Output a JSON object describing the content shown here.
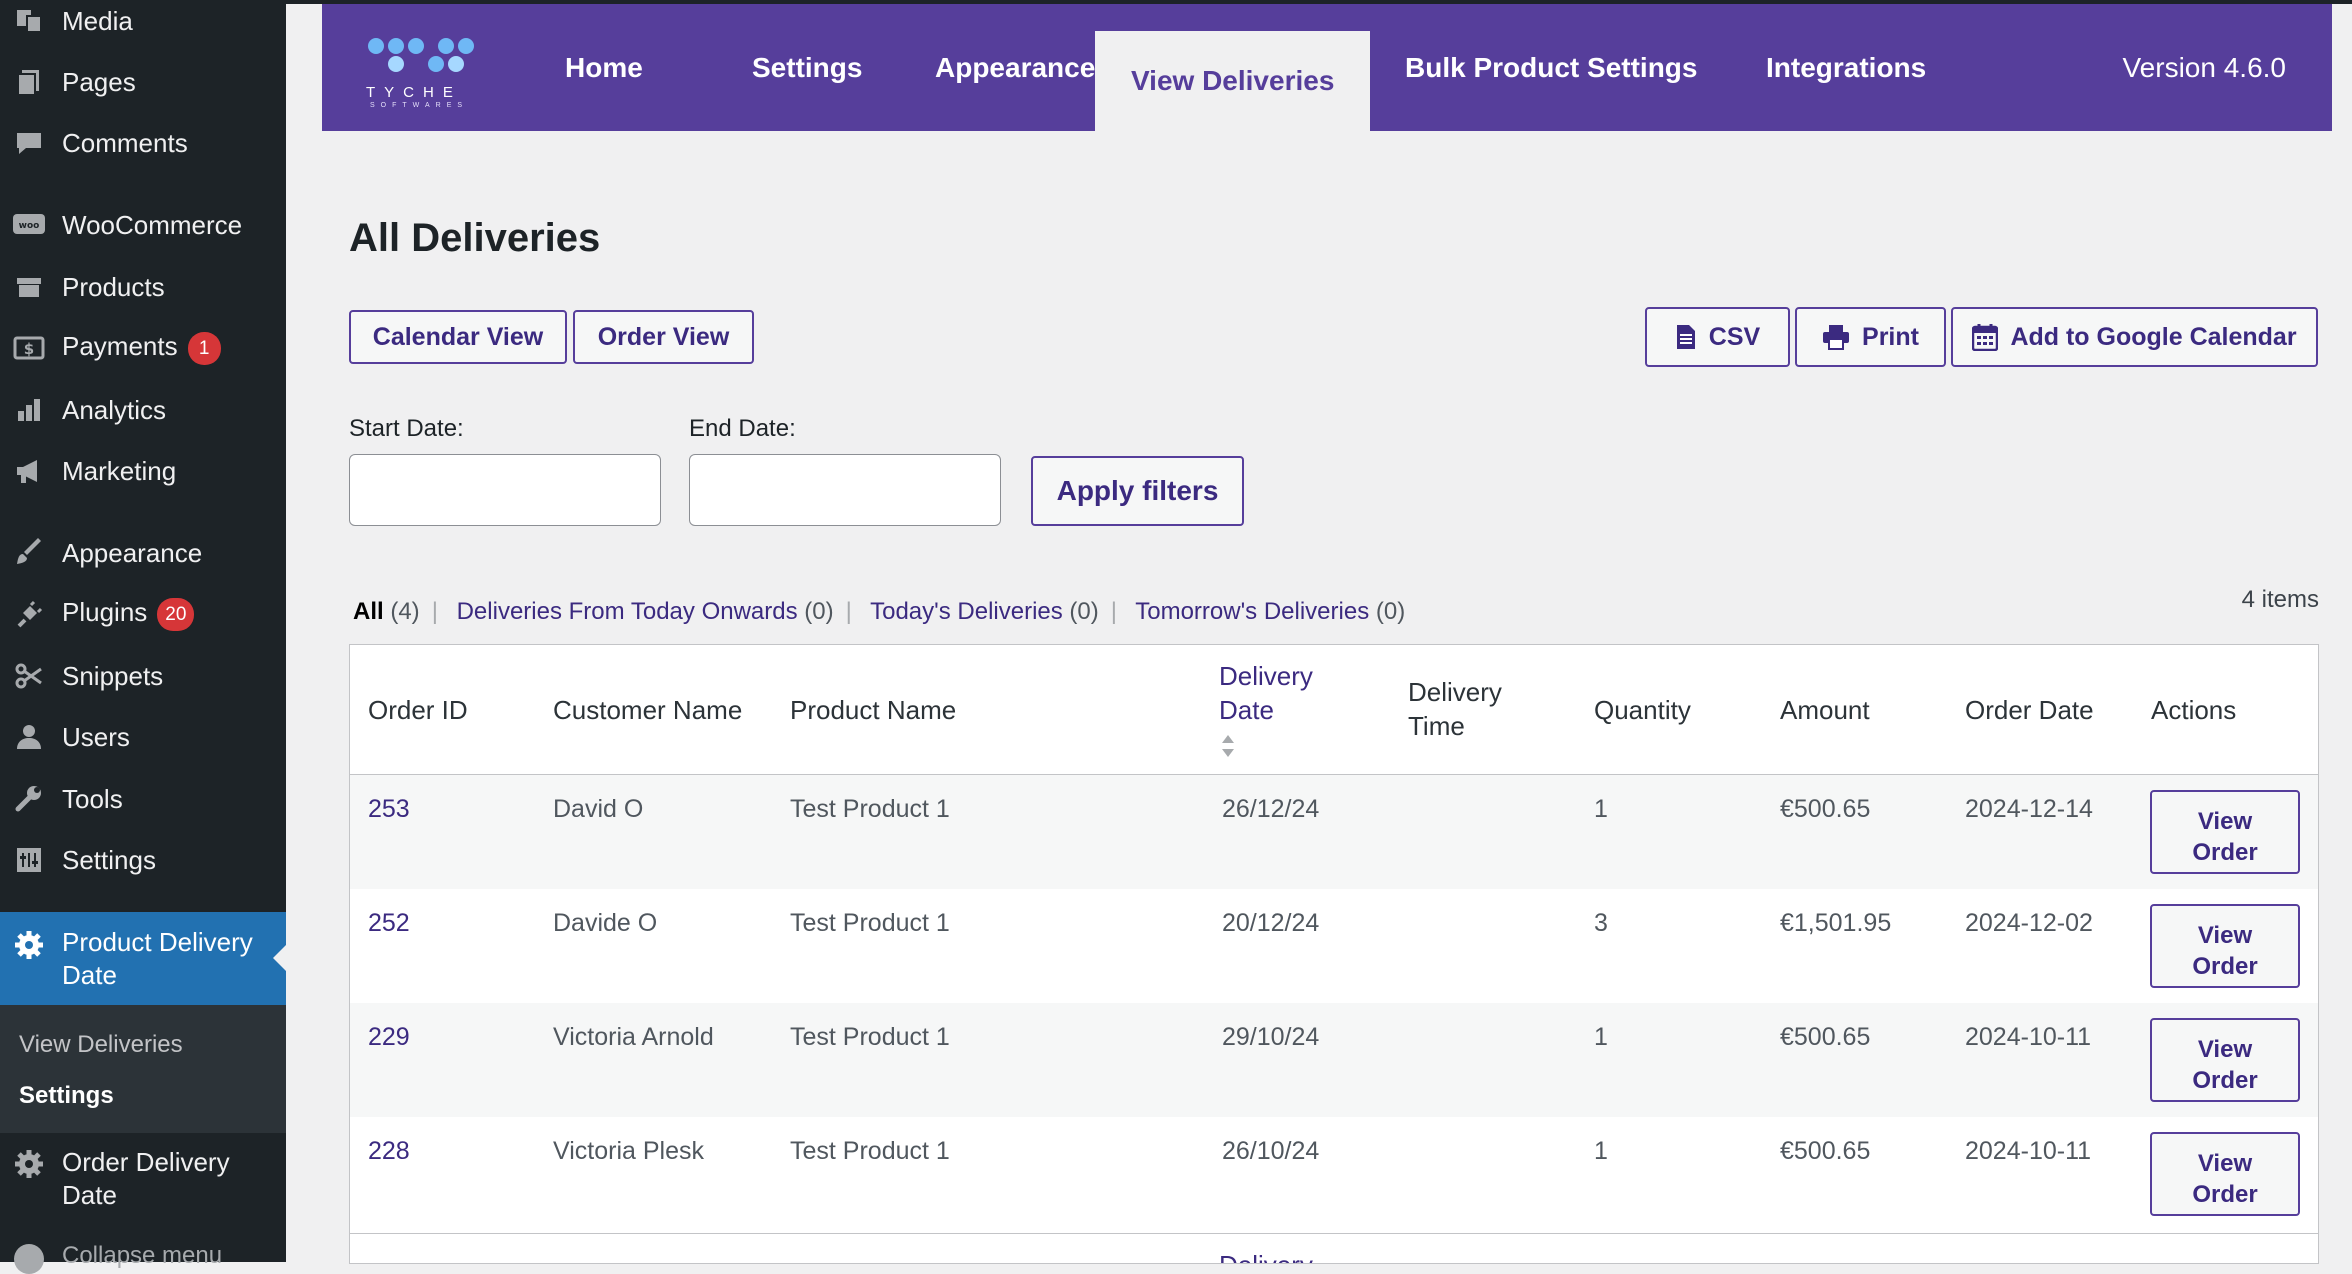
{
  "sidebar": {
    "items": [
      {
        "label": "Media",
        "icon": "media-icon"
      },
      {
        "label": "Pages",
        "icon": "pages-icon"
      },
      {
        "label": "Comments",
        "icon": "comments-icon"
      },
      {
        "label": "WooCommerce",
        "icon": "woocommerce-icon"
      },
      {
        "label": "Products",
        "icon": "products-icon"
      },
      {
        "label": "Payments",
        "icon": "payments-icon",
        "badge": "1"
      },
      {
        "label": "Analytics",
        "icon": "analytics-icon"
      },
      {
        "label": "Marketing",
        "icon": "megaphone-icon"
      },
      {
        "label": "Appearance",
        "icon": "paintbrush-icon"
      },
      {
        "label": "Plugins",
        "icon": "plugins-icon",
        "badge": "20"
      },
      {
        "label": "Snippets",
        "icon": "scissors-icon"
      },
      {
        "label": "Users",
        "icon": "users-icon"
      },
      {
        "label": "Tools",
        "icon": "wrench-icon"
      },
      {
        "label": "Settings",
        "icon": "settings-icon"
      }
    ],
    "active_item": {
      "line1": "Product Delivery",
      "line2": "Date",
      "icon": "gear-icon"
    },
    "submenu": [
      {
        "label": "View Deliveries"
      },
      {
        "label": "Settings"
      }
    ],
    "order_delivery": {
      "line1": "Order Delivery",
      "line2": "Date",
      "icon": "gear-icon"
    },
    "collapse_label": "Collapse menu"
  },
  "header": {
    "logo_text": "TYCHE",
    "logo_sub": "SOFTWARES",
    "tabs": [
      {
        "label": "Home"
      },
      {
        "label": "Settings"
      },
      {
        "label": "Appearance"
      },
      {
        "label": "View Deliveries"
      },
      {
        "label": "Bulk Product Settings"
      },
      {
        "label": "Integrations"
      }
    ],
    "version": "Version 4.6.0"
  },
  "page": {
    "title": "All Deliveries",
    "calendar_view": "Calendar View",
    "order_view": "Order View",
    "csv": "CSV",
    "print": "Print",
    "google_calendar": "Add to Google Calendar",
    "start_date_label": "Start Date:",
    "end_date_label": "End Date:",
    "start_date_value": "",
    "end_date_value": "",
    "apply_filters": "Apply filters"
  },
  "views": {
    "all": "All",
    "all_count": "(4)",
    "from_today": "Deliveries From Today Onwards",
    "from_today_count": "(0)",
    "today": "Today's Deliveries",
    "today_count": "(0)",
    "tomorrow": "Tomorrow's Deliveries",
    "tomorrow_count": "(0)",
    "items_count": "4 items"
  },
  "table": {
    "headers": {
      "order_id": "Order ID",
      "customer_name": "Customer Name",
      "product_name": "Product Name",
      "delivery_date_1": "Delivery",
      "delivery_date_2": "Date",
      "delivery_time_1": "Delivery",
      "delivery_time_2": "Time",
      "quantity": "Quantity",
      "amount": "Amount",
      "order_date": "Order Date",
      "actions": "Actions"
    },
    "rows": [
      {
        "order_id": "253",
        "customer": "David O",
        "product": "Test Product 1",
        "delivery_date": "26/12/24",
        "delivery_time": "",
        "quantity": "1",
        "amount": "€500.65",
        "order_date": "2024-12-14",
        "action_1": "View",
        "action_2": "Order"
      },
      {
        "order_id": "252",
        "customer": "Davide O",
        "product": "Test Product 1",
        "delivery_date": "20/12/24",
        "delivery_time": "",
        "quantity": "3",
        "amount": "€1,501.95",
        "order_date": "2024-12-02",
        "action_1": "View",
        "action_2": "Order"
      },
      {
        "order_id": "229",
        "customer": "Victoria Arnold",
        "product": "Test Product 1",
        "delivery_date": "29/10/24",
        "delivery_time": "",
        "quantity": "1",
        "amount": "€500.65",
        "order_date": "2024-10-11",
        "action_1": "View",
        "action_2": "Order"
      },
      {
        "order_id": "228",
        "customer": "Victoria Plesk",
        "product": "Test Product 1",
        "delivery_date": "26/10/24",
        "delivery_time": "",
        "quantity": "1",
        "amount": "€500.65",
        "order_date": "2024-10-11",
        "action_1": "View",
        "action_2": "Order"
      }
    ],
    "footer_partial": "Delivery"
  },
  "colors": {
    "brand_purple": "#563e9b",
    "sidebar_bg": "#1d2327",
    "sidebar_active": "#2271b1",
    "badge_red": "#d63638"
  }
}
